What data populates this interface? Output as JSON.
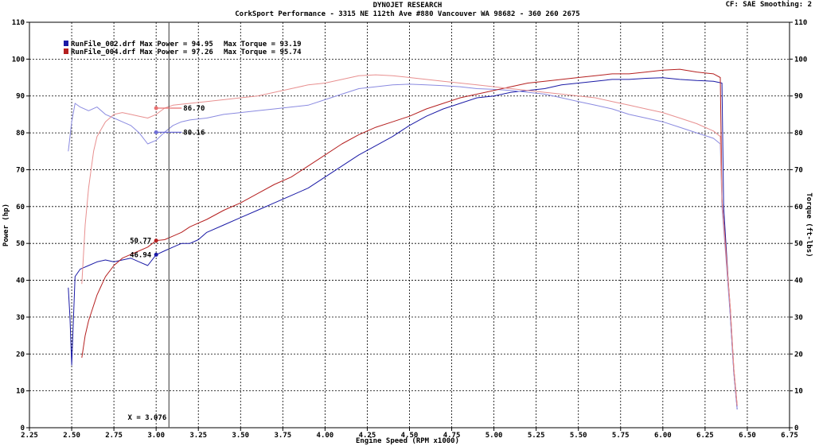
{
  "header": {
    "title": "DYNOJET RESEARCH",
    "subtitle": "CorkSport Performance - 3315 NE 112th Ave #880 Vancouver WA 98682 - 360 260 2675",
    "cf_info": "CF: SAE  Smoothing: 2"
  },
  "chart_data": {
    "type": "line",
    "xlabel": "Engine Speed (RPM x1000)",
    "ylabel": "Power (hp)",
    "y2label": "Torque (ft-lbs)",
    "xlim": [
      2.25,
      6.75
    ],
    "ylim": [
      0,
      110
    ],
    "y2lim": [
      0,
      110
    ],
    "xticks": [
      "2.25",
      "2.50",
      "2.75",
      "3.00",
      "3.25",
      "3.50",
      "3.75",
      "4.00",
      "4.25",
      "4.50",
      "4.75",
      "5.00",
      "5.25",
      "5.50",
      "5.75",
      "6.00",
      "6.25",
      "6.50",
      "6.75"
    ],
    "yticks": [
      "0",
      "10",
      "20",
      "30",
      "40",
      "50",
      "60",
      "70",
      "80",
      "90",
      "100",
      "110"
    ],
    "grid": true,
    "legend_position": "top-left",
    "legend": [
      {
        "file": "RunFile_002.drf",
        "max_power_label": "Max Power = 94.95",
        "max_torque_label": "Max Torque = 93.19",
        "color": "#1a1aa6"
      },
      {
        "file": "RunFile_004.drf",
        "max_power_label": "Max Power = 97.26",
        "max_torque_label": "Max Torque = 95.74",
        "color": "#b52020"
      }
    ],
    "cursor": {
      "x": 3.076,
      "label": "X = 3.076"
    },
    "cursor_values": [
      {
        "label": "86.70",
        "x": 3.0,
        "y": 86.7,
        "color": "#e87070"
      },
      {
        "label": "80.16",
        "x": 3.0,
        "y": 80.16,
        "color": "#7070d8"
      },
      {
        "label": "50.77",
        "x": 3.0,
        "y": 50.77,
        "color": "#b52020"
      },
      {
        "label": "46.94",
        "x": 3.0,
        "y": 46.94,
        "color": "#1a1aa6"
      }
    ],
    "series": [
      {
        "name": "RunFile_002.drf Power",
        "color": "#1a1aa6",
        "x": [
          2.48,
          2.49,
          2.5,
          2.52,
          2.55,
          2.6,
          2.65,
          2.7,
          2.75,
          2.8,
          2.85,
          2.9,
          2.95,
          3.0,
          3.05,
          3.1,
          3.15,
          3.2,
          3.25,
          3.3,
          3.4,
          3.5,
          3.6,
          3.7,
          3.8,
          3.9,
          4.0,
          4.1,
          4.2,
          4.3,
          4.4,
          4.5,
          4.6,
          4.7,
          4.8,
          4.9,
          5.0,
          5.1,
          5.2,
          5.3,
          5.4,
          5.5,
          5.6,
          5.7,
          5.8,
          5.9,
          6.0,
          6.1,
          6.2,
          6.3,
          6.35,
          6.36,
          6.38,
          6.4,
          6.42,
          6.44
        ],
        "y": [
          38,
          30,
          17,
          41,
          43,
          44,
          45,
          45.5,
          45,
          45.5,
          46,
          45,
          44,
          46.94,
          48,
          49,
          50,
          50,
          51,
          53,
          55,
          57,
          59,
          61,
          63,
          65,
          68,
          71,
          74,
          76.5,
          79,
          82,
          84.5,
          86.5,
          88,
          89.5,
          90,
          91,
          91.5,
          92,
          93,
          93.5,
          94,
          94.5,
          94.5,
          94.8,
          94.95,
          94.5,
          94.2,
          94,
          93.5,
          60,
          45,
          30,
          15,
          5
        ]
      },
      {
        "name": "RunFile_002.drf Torque",
        "color": "#8a8ae0",
        "x": [
          2.48,
          2.5,
          2.52,
          2.55,
          2.6,
          2.65,
          2.7,
          2.75,
          2.8,
          2.85,
          2.9,
          2.95,
          3.0,
          3.05,
          3.1,
          3.15,
          3.2,
          3.3,
          3.4,
          3.5,
          3.6,
          3.7,
          3.8,
          3.9,
          4.0,
          4.1,
          4.2,
          4.3,
          4.4,
          4.5,
          4.6,
          4.7,
          4.8,
          4.9,
          5.0,
          5.1,
          5.2,
          5.3,
          5.4,
          5.5,
          5.6,
          5.7,
          5.8,
          5.9,
          6.0,
          6.1,
          6.2,
          6.3,
          6.34,
          6.35,
          6.37,
          6.4,
          6.42,
          6.44
        ],
        "y": [
          75,
          83,
          88,
          87,
          86,
          87,
          85,
          84,
          83,
          82,
          80,
          77,
          78,
          80.16,
          82,
          83,
          83.5,
          84,
          85,
          85.5,
          86,
          86.5,
          87,
          87.5,
          89,
          90.5,
          92,
          92.5,
          93,
          93.19,
          93,
          92.8,
          92.5,
          92,
          91.8,
          91.5,
          91,
          90.5,
          89.5,
          88.5,
          87.5,
          86.5,
          85,
          84,
          83,
          81.5,
          80,
          78.5,
          77,
          60,
          48,
          30,
          15,
          5
        ]
      },
      {
        "name": "RunFile_004.drf Power",
        "color": "#b52020",
        "x": [
          2.56,
          2.58,
          2.6,
          2.65,
          2.7,
          2.75,
          2.8,
          2.85,
          2.9,
          2.95,
          3.0,
          3.05,
          3.1,
          3.15,
          3.2,
          3.3,
          3.4,
          3.5,
          3.6,
          3.7,
          3.8,
          3.9,
          4.0,
          4.1,
          4.2,
          4.3,
          4.4,
          4.5,
          4.6,
          4.7,
          4.8,
          4.9,
          5.0,
          5.1,
          5.2,
          5.3,
          5.4,
          5.5,
          5.6,
          5.7,
          5.8,
          5.9,
          6.0,
          6.1,
          6.2,
          6.3,
          6.34,
          6.35,
          6.37,
          6.4,
          6.42,
          6.44
        ],
        "y": [
          19,
          25,
          29,
          36,
          41,
          44,
          46,
          47,
          48,
          49,
          50.77,
          51,
          52,
          53,
          54.5,
          56.5,
          59,
          61,
          63.5,
          66,
          68,
          71,
          74,
          77,
          79.5,
          81.5,
          83,
          84.5,
          86.5,
          88,
          89.5,
          90.5,
          91.5,
          92.5,
          93.5,
          94,
          94.5,
          95,
          95.5,
          96,
          96,
          96.5,
          97,
          97.26,
          96.5,
          96,
          95,
          62,
          50,
          32,
          16,
          6
        ]
      },
      {
        "name": "RunFile_004.drf Torque",
        "color": "#e89090",
        "x": [
          2.56,
          2.58,
          2.6,
          2.63,
          2.65,
          2.7,
          2.75,
          2.8,
          2.85,
          2.9,
          2.95,
          3.0,
          3.05,
          3.1,
          3.2,
          3.3,
          3.4,
          3.5,
          3.6,
          3.7,
          3.8,
          3.9,
          4.0,
          4.1,
          4.2,
          4.3,
          4.4,
          4.5,
          4.6,
          4.7,
          4.8,
          4.9,
          5.0,
          5.1,
          5.2,
          5.3,
          5.4,
          5.5,
          5.6,
          5.7,
          5.8,
          5.9,
          6.0,
          6.1,
          6.2,
          6.3,
          6.34,
          6.35,
          6.37,
          6.4,
          6.42,
          6.44
        ],
        "y": [
          39,
          55,
          65,
          75,
          79,
          83,
          85,
          85.5,
          85,
          84.5,
          84,
          85,
          86.7,
          87.5,
          88,
          88.5,
          89,
          89.5,
          90,
          91,
          92,
          93,
          93.5,
          94.5,
          95.5,
          95.74,
          95.5,
          95,
          94.5,
          94,
          93.5,
          93,
          92.5,
          92,
          91.5,
          91,
          90.5,
          90,
          89.5,
          88.5,
          87.5,
          86.5,
          85.5,
          84,
          82.5,
          80.5,
          79,
          62,
          49,
          32,
          16,
          6
        ]
      }
    ]
  }
}
